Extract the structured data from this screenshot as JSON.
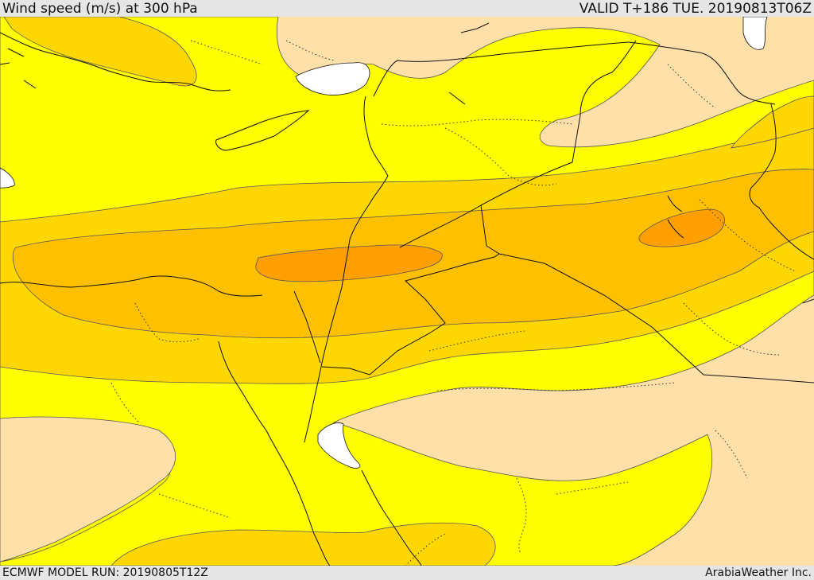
{
  "header": {
    "title": "Wind speed (m/s) at 300 hPa",
    "valid": "VALID T+186 TUE. 20190813T06Z"
  },
  "footer": {
    "model_run": "ECMWF MODEL RUN: 20190805T12Z",
    "credit": "ArabiaWeather Inc."
  },
  "map": {
    "colors": {
      "background_light": "#ffe0a8",
      "level_yellow": "#ffff00",
      "level_gold": "#ffd700",
      "level_amber": "#ffc000",
      "level_orange": "#ffa000",
      "water": "#ffffff",
      "border": "#111111"
    }
  }
}
